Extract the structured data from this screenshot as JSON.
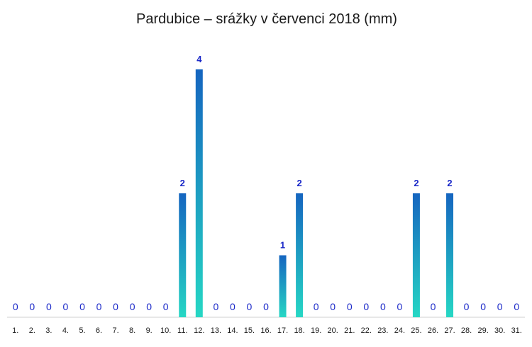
{
  "chart_data": {
    "type": "bar",
    "title": "Pardubice – srážky v červenci 2018 (mm)",
    "xlabel": "",
    "ylabel": "",
    "categories": [
      "1.",
      "2.",
      "3.",
      "4.",
      "5.",
      "6.",
      "7.",
      "8.",
      "9.",
      "10.",
      "11.",
      "12.",
      "13.",
      "14.",
      "15.",
      "16.",
      "17.",
      "18.",
      "19.",
      "20.",
      "21.",
      "22.",
      "23.",
      "24.",
      "25.",
      "26.",
      "27.",
      "28.",
      "29.",
      "30.",
      "31."
    ],
    "values": [
      0,
      0,
      0,
      0,
      0,
      0,
      0,
      0,
      0,
      0,
      2,
      4,
      0,
      0,
      0,
      0,
      1,
      2,
      0,
      0,
      0,
      0,
      0,
      0,
      2,
      0,
      2,
      0,
      0,
      0,
      0
    ],
    "ylim": [
      0,
      4
    ],
    "grid": false,
    "legend": "none",
    "colors": {
      "bar_top": "#1565c0",
      "bar_bottom": "#26d7c4",
      "label": "#1a28c8",
      "axis": "#d0d0d0"
    }
  }
}
